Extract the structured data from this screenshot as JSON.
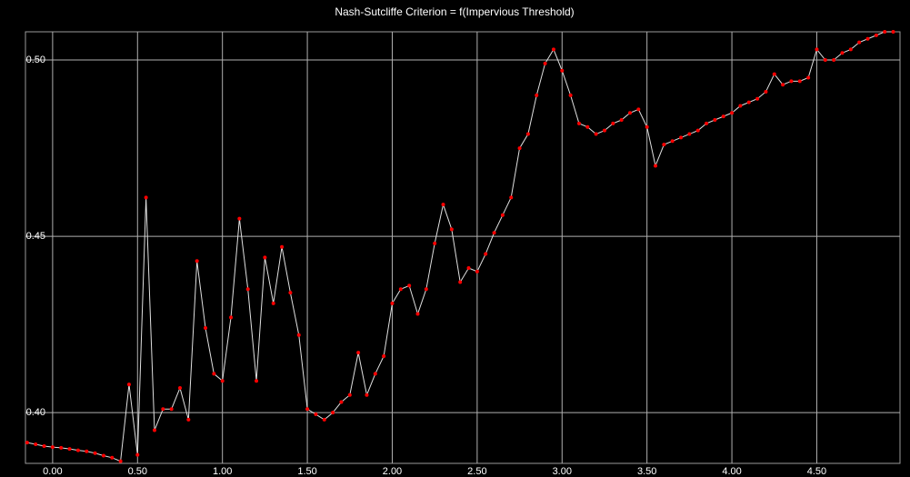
{
  "chart_data": {
    "type": "line",
    "title": "Nash-Sutcliffe Criterion = f(Impervious Threshold)",
    "x": [
      -0.15,
      -0.1,
      -0.05,
      0.0,
      0.05,
      0.1,
      0.15,
      0.2,
      0.25,
      0.3,
      0.35,
      0.4,
      0.45,
      0.5,
      0.55,
      0.6,
      0.65,
      0.7,
      0.75,
      0.8,
      0.85,
      0.9,
      0.95,
      1.0,
      1.05,
      1.1,
      1.15,
      1.2,
      1.25,
      1.3,
      1.35,
      1.4,
      1.45,
      1.5,
      1.55,
      1.6,
      1.65,
      1.7,
      1.75,
      1.8,
      1.85,
      1.9,
      1.95,
      2.0,
      2.05,
      2.1,
      2.15,
      2.2,
      2.25,
      2.3,
      2.35,
      2.4,
      2.45,
      2.5,
      2.55,
      2.6,
      2.65,
      2.7,
      2.75,
      2.8,
      2.85,
      2.9,
      2.95,
      3.0,
      3.05,
      3.1,
      3.15,
      3.2,
      3.25,
      3.3,
      3.35,
      3.4,
      3.45,
      3.5,
      3.55,
      3.6,
      3.65,
      3.7,
      3.75,
      3.8,
      3.85,
      3.9,
      3.95,
      4.0,
      4.05,
      4.1,
      4.15,
      4.2,
      4.25,
      4.3,
      4.35,
      4.4,
      4.45,
      4.5,
      4.55,
      4.6,
      4.65,
      4.7,
      4.75,
      4.8,
      4.85,
      4.9,
      4.95
    ],
    "series": [
      {
        "name": "Nash-Sutcliffe",
        "color": "#e0e0e0",
        "marker_color": "#ff0000",
        "values": [
          0.3915,
          0.391,
          0.3905,
          0.3902,
          0.39,
          0.3897,
          0.3893,
          0.389,
          0.3885,
          0.3878,
          0.3872,
          0.3862,
          0.408,
          0.388,
          0.461,
          0.395,
          0.401,
          0.401,
          0.407,
          0.398,
          0.443,
          0.424,
          0.411,
          0.409,
          0.427,
          0.455,
          0.435,
          0.409,
          0.444,
          0.431,
          0.447,
          0.434,
          0.422,
          0.401,
          0.3995,
          0.398,
          0.4,
          0.403,
          0.405,
          0.417,
          0.405,
          0.411,
          0.416,
          0.431,
          0.435,
          0.436,
          0.428,
          0.435,
          0.448,
          0.459,
          0.452,
          0.437,
          0.441,
          0.44,
          0.445,
          0.451,
          0.456,
          0.461,
          0.475,
          0.479,
          0.49,
          0.499,
          0.503,
          0.497,
          0.49,
          0.482,
          0.481,
          0.479,
          0.48,
          0.482,
          0.483,
          0.485,
          0.486,
          0.481,
          0.47,
          0.476,
          0.477,
          0.478,
          0.479,
          0.48,
          0.482,
          0.483,
          0.484,
          0.485,
          0.487,
          0.488,
          0.489,
          0.491,
          0.496,
          0.493,
          0.494,
          0.494,
          0.495,
          0.503,
          0.5,
          0.5,
          0.502,
          0.503,
          0.505,
          0.506,
          0.507,
          0.508,
          0.508
        ]
      }
    ],
    "xlim": [
      -0.16,
      4.99
    ],
    "ylim": [
      0.3856,
      0.508
    ],
    "xticks": [
      {
        "value": 0,
        "label": "0.00"
      },
      {
        "value": 0.5,
        "label": "0.50"
      },
      {
        "value": 1,
        "label": "1.00"
      },
      {
        "value": 1.5,
        "label": "1.50"
      },
      {
        "value": 2,
        "label": "2.00"
      },
      {
        "value": 2.5,
        "label": "2.50"
      },
      {
        "value": 3,
        "label": "3.00"
      },
      {
        "value": 3.5,
        "label": "3.50"
      },
      {
        "value": 4,
        "label": "4.00"
      },
      {
        "value": 4.5,
        "label": "4.50"
      }
    ],
    "yticks": [
      {
        "value": 0.4,
        "label": "0.40"
      },
      {
        "value": 0.45,
        "label": "0.45"
      },
      {
        "value": 0.5,
        "label": "0.50"
      }
    ],
    "grid": true
  }
}
